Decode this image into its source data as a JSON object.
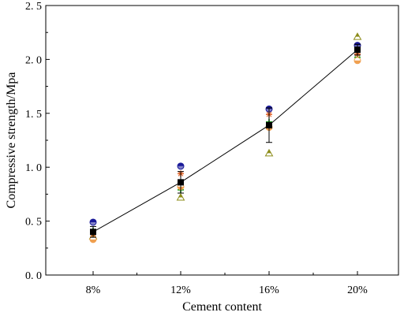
{
  "chart_data": {
    "type": "scatter",
    "xlabel": "Cement content",
    "ylabel": "Compressive strength/Mpa",
    "categories": [
      "8%",
      "12%",
      "16%",
      "20%"
    ],
    "ylim": [
      0,
      2.5
    ],
    "yticks": [
      0.0,
      0.5,
      1.0,
      1.5,
      2.0,
      2.5
    ],
    "ytick_labels": [
      "0. 0",
      "0. 5",
      "1. 0",
      "1. 5",
      "2. 0",
      "2. 5"
    ],
    "grid": false,
    "legend": "none",
    "mean": {
      "values": [
        0.4,
        0.86,
        1.39,
        2.09
      ],
      "error": [
        0.05,
        0.1,
        0.16,
        0.05
      ],
      "color": "#000000",
      "marker": "square",
      "connected": true
    },
    "samples": [
      {
        "marker": "circle-half",
        "color": "#1a1a99",
        "values": [
          0.49,
          1.01,
          1.54,
          2.13
        ]
      },
      {
        "marker": "triangle",
        "color": "#8c8c1a",
        "values": [
          0.36,
          0.72,
          1.13,
          2.21
        ]
      },
      {
        "marker": "plus",
        "color": "#1aa61a",
        "values": [
          0.41,
          0.79,
          1.42,
          2.02
        ]
      },
      {
        "marker": "star",
        "color": "#e05a1a",
        "values": [
          0.38,
          0.94,
          1.49,
          2.05
        ]
      },
      {
        "marker": "circle",
        "color": "#f0a050",
        "values": [
          0.33,
          0.82,
          1.37,
          1.99
        ]
      }
    ]
  }
}
